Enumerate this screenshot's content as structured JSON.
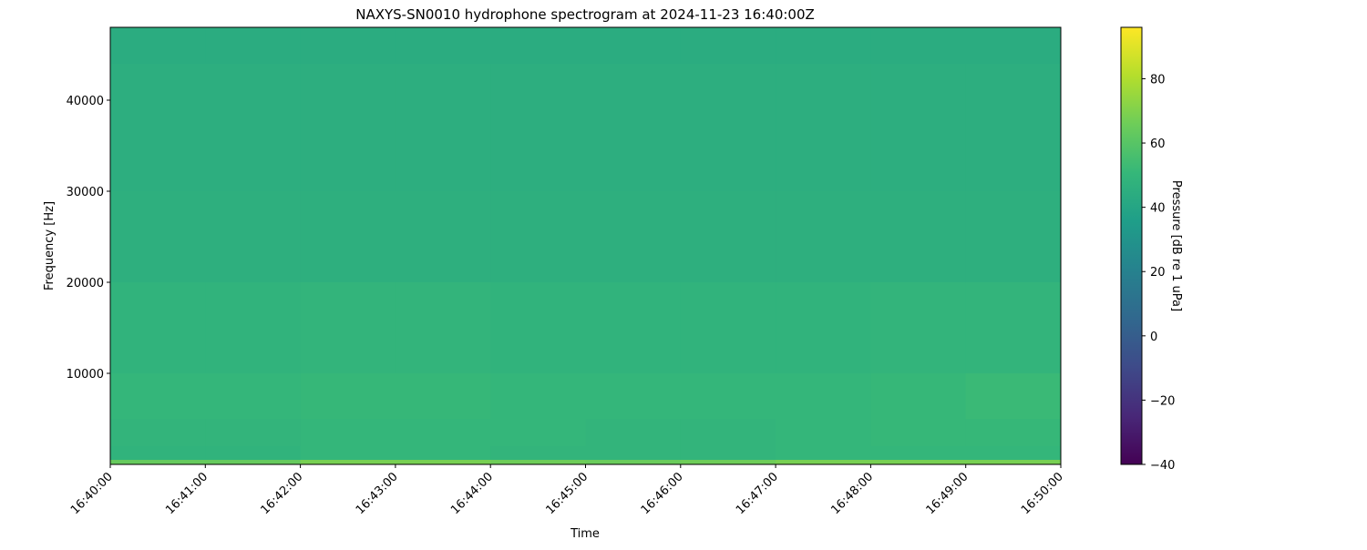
{
  "chart_data": {
    "type": "heatmap",
    "title": "NAXYS-SN0010 hydrophone spectrogram at 2024-11-23 16:40:00Z",
    "xlabel": "Time",
    "ylabel": "Frequency [Hz]",
    "colorbar_label": "Pressure [dB re 1 uPa]",
    "colormap": "viridis",
    "xlim": [
      "16:40:00",
      "16:50:00"
    ],
    "ylim": [
      0,
      48000
    ],
    "clim": [
      -40,
      96
    ],
    "x_ticks": [
      "16:40:00",
      "16:41:00",
      "16:42:00",
      "16:43:00",
      "16:44:00",
      "16:45:00",
      "16:46:00",
      "16:47:00",
      "16:48:00",
      "16:49:00",
      "16:50:00"
    ],
    "y_ticks": [
      10000,
      20000,
      30000,
      40000
    ],
    "colorbar_ticks": [
      -40,
      -20,
      0,
      20,
      40,
      60,
      80
    ],
    "grid": false,
    "time_bins_minute_start": [
      "16:40",
      "16:41",
      "16:42",
      "16:43",
      "16:44",
      "16:45",
      "16:46",
      "16:47",
      "16:48",
      "16:49"
    ],
    "freq_bands_hz": [
      [
        44000,
        48000
      ],
      [
        30000,
        44000
      ],
      [
        20000,
        30000
      ],
      [
        10000,
        20000
      ],
      [
        5000,
        10000
      ],
      [
        2000,
        5000
      ],
      [
        500,
        2000
      ],
      [
        0,
        500
      ]
    ],
    "values_db": [
      [
        44,
        44,
        44,
        44,
        44,
        44,
        44,
        44,
        44,
        44
      ],
      [
        45,
        45,
        45,
        45,
        45,
        45,
        45,
        45,
        45,
        45
      ],
      [
        46,
        46,
        46,
        46,
        46,
        46,
        46,
        46,
        46,
        46
      ],
      [
        48,
        48,
        49,
        49,
        48,
        48,
        48,
        48,
        49,
        49
      ],
      [
        50,
        50,
        51,
        51,
        50,
        50,
        50,
        50,
        51,
        52
      ],
      [
        49,
        49,
        50,
        50,
        50,
        49,
        49,
        50,
        51,
        51
      ],
      [
        48,
        48,
        50,
        50,
        49,
        49,
        49,
        50,
        50,
        50
      ],
      [
        64,
        64,
        68,
        68,
        66,
        65,
        66,
        68,
        68,
        68
      ]
    ]
  }
}
